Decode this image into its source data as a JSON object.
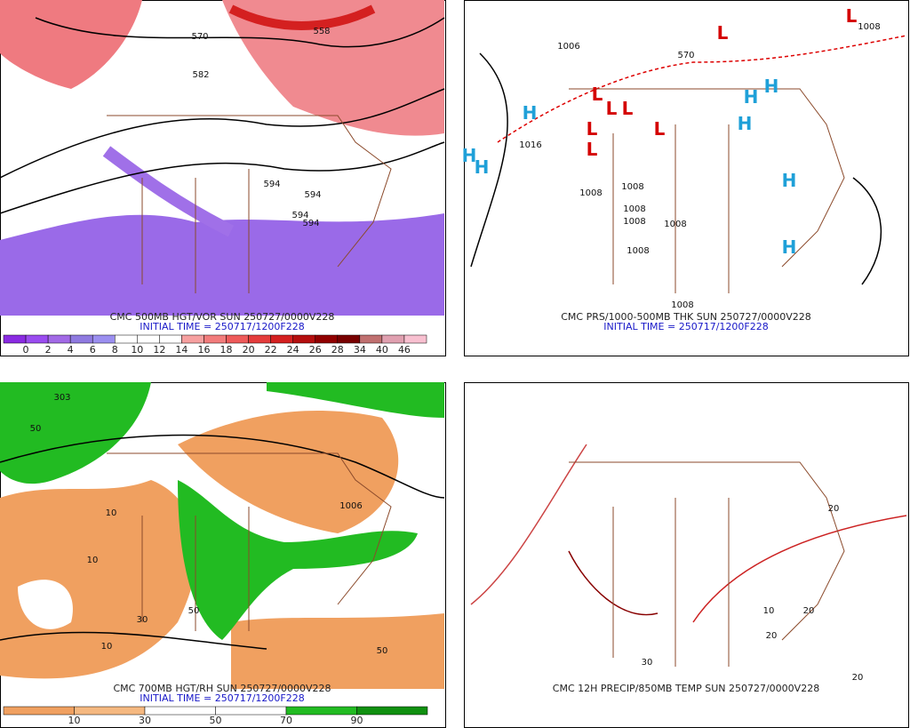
{
  "panels": [
    {
      "title": "CMC 500MB HGT/VOR SUN 250727/0000V228",
      "subtitle": "INITIAL TIME = 250717/1200F228",
      "colorbar": {
        "labels": [
          "0",
          "2",
          "4",
          "6",
          "8",
          "10",
          "12",
          "14",
          "16",
          "18",
          "20",
          "22",
          "24",
          "26",
          "28",
          "34",
          "40",
          "46"
        ],
        "colors": [
          "#8a2be2",
          "#9a4cf0",
          "#a26ae6",
          "#8f7ae0",
          "#9b8ff0",
          "#ffffff",
          "#ffffff",
          "#ffffff",
          "#f6a0a0",
          "#f27c7c",
          "#ee5a5a",
          "#e43c3c",
          "#d42020",
          "#b40e0e",
          "#900000",
          "#780000",
          "#c07070",
          "#e0a0b0",
          "#f8c0d0"
        ]
      },
      "labels": [
        "570",
        "558",
        "582",
        "594",
        "594",
        "594",
        "594"
      ]
    },
    {
      "title": "CMC PRS/1000-500MB THK SUN 250727/0000V228",
      "subtitle": "INITIAL TIME = 250717/1200F228",
      "highs": [
        "H",
        "H",
        "H",
        "H",
        "H",
        "H",
        "H",
        "H"
      ],
      "lows": [
        "L",
        "L",
        "L",
        "L",
        "L",
        "L",
        "L",
        "L"
      ],
      "labels": [
        "1008",
        "1006",
        "570",
        "1016",
        "1008",
        "1008",
        "1008",
        "1008",
        "1008",
        "1008",
        "1008"
      ]
    },
    {
      "title": "CMC 700MB HGT/RH SUN 250727/0000V228",
      "subtitle": "INITIAL TIME = 250717/1200F228",
      "colorbar": {
        "labels": [
          "10",
          "30",
          "50",
          "70",
          "90"
        ],
        "colors": [
          "#f0a060",
          "#f5b880",
          "#ffffff",
          "#ffffff",
          "#22bb22",
          "#109010"
        ]
      },
      "labels": [
        "303",
        "50",
        "10",
        "10",
        "30",
        "50",
        "1006",
        "50",
        "10"
      ]
    },
    {
      "title": "CMC 12H PRECIP/850MB TEMP SUN 250727/0000V228",
      "labels": [
        "20",
        "20",
        "10",
        "30",
        "20",
        "20"
      ]
    }
  ]
}
